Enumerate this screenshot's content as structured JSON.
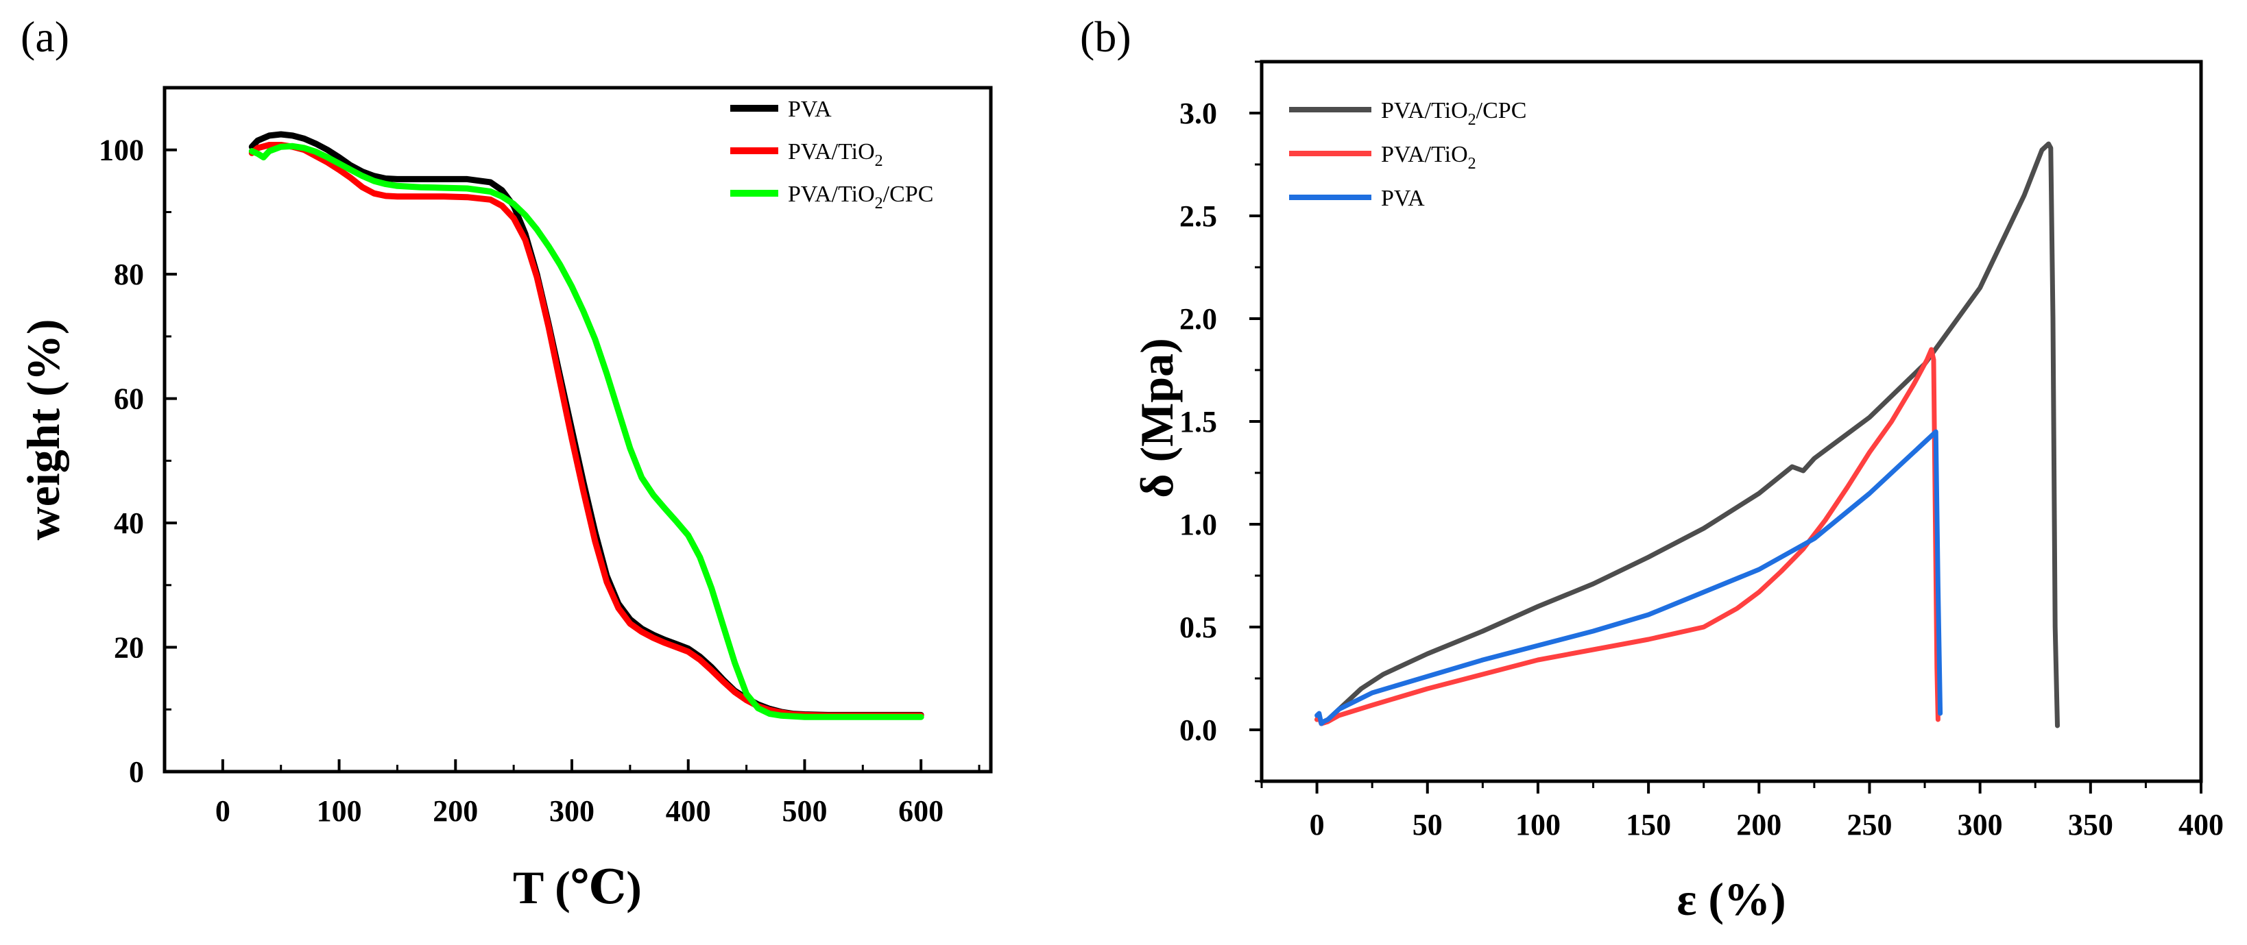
{
  "figure": {
    "panels": [
      {
        "label": "(a)"
      },
      {
        "label": "(b)"
      }
    ]
  },
  "chart_data": [
    {
      "id": "a",
      "type": "line",
      "title": "",
      "xlabel": "T (℃)",
      "ylabel": "weight (%)",
      "xlim": [
        -50,
        660
      ],
      "ylim": [
        0,
        110
      ],
      "xticks": [
        0,
        100,
        200,
        300,
        400,
        500,
        600
      ],
      "yticks": [
        0,
        20,
        40,
        60,
        80,
        100
      ],
      "grid": false,
      "legend_position": "top-right",
      "series": [
        {
          "name": "PVA",
          "legend_main": "PVA",
          "legend_sub": "",
          "legend_tail": "",
          "color": "#000000",
          "x": [
            25,
            30,
            40,
            50,
            60,
            70,
            80,
            90,
            100,
            110,
            120,
            130,
            140,
            150,
            170,
            190,
            210,
            230,
            240,
            250,
            260,
            270,
            280,
            290,
            300,
            310,
            320,
            330,
            340,
            350,
            360,
            370,
            380,
            390,
            400,
            410,
            420,
            430,
            440,
            450,
            460,
            470,
            480,
            490,
            500,
            520,
            550,
            600
          ],
          "y": [
            100.5,
            101.5,
            102.3,
            102.5,
            102.3,
            101.8,
            101,
            100,
            98.8,
            97.5,
            96.5,
            95.8,
            95.4,
            95.3,
            95.3,
            95.3,
            95.3,
            94.8,
            93.5,
            91,
            86.5,
            80,
            72,
            63.5,
            55,
            46.5,
            38.5,
            31.5,
            27,
            24.5,
            23,
            22,
            21.2,
            20.5,
            19.8,
            18.5,
            16.8,
            14.8,
            13,
            11.8,
            10.8,
            10.1,
            9.6,
            9.3,
            9.2,
            9.1,
            9.1,
            9.1
          ]
        },
        {
          "name": "PVA/TiO2",
          "legend_main": "PVA/TiO",
          "legend_sub": "2",
          "legend_tail": "",
          "color": "#ff0000",
          "x": [
            25,
            30,
            40,
            50,
            60,
            70,
            80,
            90,
            100,
            110,
            120,
            130,
            140,
            150,
            170,
            190,
            210,
            230,
            240,
            250,
            260,
            270,
            280,
            290,
            300,
            310,
            320,
            330,
            340,
            350,
            360,
            370,
            380,
            390,
            400,
            410,
            420,
            430,
            440,
            450,
            460,
            470,
            480,
            490,
            500,
            520,
            550,
            600
          ],
          "y": [
            99.5,
            100.3,
            100.8,
            100.8,
            100.5,
            100,
            99,
            98,
            96.8,
            95.5,
            94,
            93,
            92.6,
            92.5,
            92.5,
            92.5,
            92.4,
            92,
            91,
            89,
            85.5,
            79.5,
            71.5,
            62.5,
            53.5,
            45,
            37,
            30.5,
            26.3,
            23.8,
            22.5,
            21.5,
            20.7,
            20,
            19.3,
            18,
            16.3,
            14.5,
            12.8,
            11.5,
            10.5,
            9.9,
            9.5,
            9.2,
            9.1,
            9,
            9,
            9
          ]
        },
        {
          "name": "PVA/TiO2/CPC",
          "legend_main": "PVA/TiO",
          "legend_sub": "2",
          "legend_tail": "/CPC",
          "color": "#00ff00",
          "x": [
            25,
            30,
            35,
            40,
            50,
            60,
            70,
            80,
            90,
            100,
            110,
            120,
            130,
            140,
            150,
            170,
            190,
            210,
            230,
            240,
            250,
            260,
            270,
            280,
            290,
            300,
            310,
            320,
            330,
            340,
            350,
            360,
            370,
            380,
            390,
            400,
            410,
            420,
            430,
            440,
            450,
            460,
            470,
            480,
            490,
            500,
            520,
            550,
            600
          ],
          "y": [
            99.8,
            99.4,
            98.8,
            99.8,
            100.5,
            100.6,
            100.3,
            99.7,
            98.8,
            97.8,
            96.8,
            95.8,
            95,
            94.5,
            94.2,
            94,
            93.9,
            93.8,
            93.3,
            92.5,
            91.3,
            89.5,
            87.2,
            84.5,
            81.5,
            78,
            74,
            69.5,
            64,
            58,
            52,
            47.3,
            44.5,
            42.3,
            40.2,
            38,
            34.5,
            29.5,
            23.5,
            17.5,
            12.5,
            10.2,
            9.3,
            9,
            8.9,
            8.8,
            8.8,
            8.8,
            8.8
          ]
        }
      ]
    },
    {
      "id": "b",
      "type": "line",
      "title": "",
      "xlabel": "ε (%)",
      "ylabel": "δ (Mpa)",
      "xlim": [
        -25,
        400
      ],
      "ylim": [
        -0.25,
        3.25
      ],
      "xticks": [
        0,
        50,
        100,
        150,
        200,
        250,
        300,
        350,
        400
      ],
      "yticks": [
        0.0,
        0.5,
        1.0,
        1.5,
        2.0,
        2.5,
        3.0
      ],
      "ytick_labels": [
        "0.0",
        "0.5",
        "1.0",
        "1.5",
        "2.0",
        "2.5",
        "3.0"
      ],
      "grid": false,
      "legend_position": "top-left",
      "series": [
        {
          "name": "PVA/TiO2/CPC",
          "legend_main": "PVA/TiO",
          "legend_sub": "2",
          "legend_tail": "/CPC",
          "color": "#4d4d4d",
          "x": [
            0,
            1,
            2,
            3,
            5,
            10,
            20,
            30,
            50,
            75,
            100,
            125,
            150,
            175,
            200,
            215,
            220,
            225,
            250,
            275,
            300,
            320,
            328,
            331,
            332,
            333,
            334,
            335
          ],
          "y": [
            0.05,
            0.07,
            0.03,
            0.04,
            0.05,
            0.1,
            0.2,
            0.27,
            0.37,
            0.48,
            0.6,
            0.71,
            0.84,
            0.98,
            1.15,
            1.28,
            1.26,
            1.32,
            1.52,
            1.78,
            2.15,
            2.6,
            2.82,
            2.85,
            2.83,
            2.0,
            0.5,
            0.02
          ]
        },
        {
          "name": "PVA/TiO2",
          "legend_main": "PVA/TiO",
          "legend_sub": "2",
          "legend_tail": "",
          "color": "#ff4040",
          "x": [
            0,
            1,
            2,
            5,
            10,
            25,
            50,
            75,
            100,
            125,
            150,
            175,
            190,
            200,
            210,
            220,
            230,
            240,
            250,
            260,
            270,
            276,
            278,
            279,
            280,
            280.5,
            281
          ],
          "y": [
            0.05,
            0.06,
            0.03,
            0.04,
            0.07,
            0.12,
            0.2,
            0.27,
            0.34,
            0.39,
            0.44,
            0.5,
            0.59,
            0.67,
            0.77,
            0.88,
            1.02,
            1.18,
            1.35,
            1.5,
            1.68,
            1.8,
            1.85,
            1.8,
            0.8,
            0.3,
            0.05
          ]
        },
        {
          "name": "PVA",
          "legend_main": "PVA",
          "legend_sub": "",
          "legend_tail": "",
          "color": "#1f6fe0",
          "x": [
            0,
            1,
            2,
            3,
            5,
            10,
            25,
            50,
            75,
            100,
            125,
            150,
            175,
            200,
            225,
            250,
            265,
            275,
            280,
            281,
            282
          ],
          "y": [
            0.07,
            0.08,
            0.03,
            0.04,
            0.05,
            0.1,
            0.18,
            0.26,
            0.34,
            0.41,
            0.48,
            0.56,
            0.67,
            0.78,
            0.93,
            1.15,
            1.3,
            1.4,
            1.45,
            0.7,
            0.08
          ]
        }
      ]
    }
  ]
}
